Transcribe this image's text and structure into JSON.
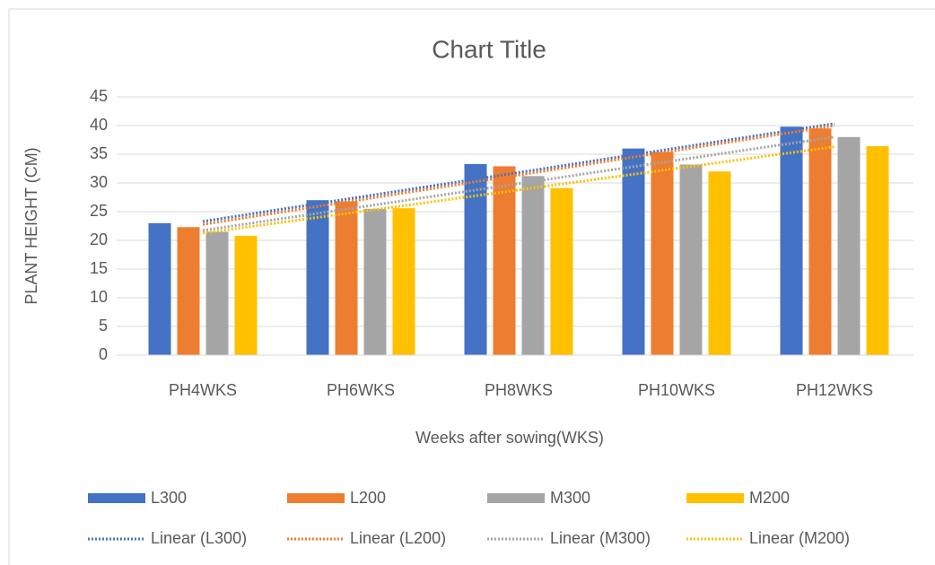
{
  "chart_data": {
    "type": "bar",
    "title": "Chart Title",
    "x_label": "Weeks after sowing(WKS)",
    "y_label": "PLANT HEIGHT (CM)",
    "categories": [
      "PH4WKS",
      "PH6WKS",
      "PH8WKS",
      "PH10WKS",
      "PH12WKS"
    ],
    "series": [
      {
        "name": "L300",
        "color": "#4472c4",
        "values": [
          23.0,
          27.0,
          33.3,
          36.0,
          39.8
        ],
        "trendline": "Linear (L300)"
      },
      {
        "name": "L200",
        "color": "#ed7d31",
        "values": [
          22.3,
          26.8,
          32.9,
          35.4,
          39.5
        ],
        "trendline": "Linear (L200)"
      },
      {
        "name": "M300",
        "color": "#a5a5a5",
        "values": [
          21.5,
          25.5,
          31.2,
          33.2,
          38.0
        ],
        "trendline": "Linear (M300)"
      },
      {
        "name": "M200",
        "color": "#ffc000",
        "values": [
          20.8,
          25.6,
          29.1,
          32.0,
          36.4
        ],
        "trendline": "Linear (M200)"
      }
    ],
    "ylim": [
      0,
      45
    ],
    "yticks": [
      0,
      5,
      10,
      15,
      20,
      25,
      30,
      35,
      40,
      45
    ],
    "grid": true,
    "legend": "bottom"
  }
}
